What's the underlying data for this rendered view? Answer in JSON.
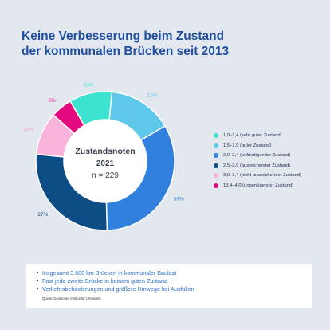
{
  "title": {
    "line1": "Keine Verbesserung beim Zustand",
    "line2": "der kommunalen Brücken seit 2013"
  },
  "center_label": {
    "line1": "Zustandsnoten",
    "line2": "2021",
    "line3": "n = 229"
  },
  "chart_data": {
    "type": "pie",
    "title": "Keine Verbesserung beim Zustand der kommunalen Brücken seit 2013",
    "donut": true,
    "legend_position": "right",
    "categories": [
      "1,0–1,4 (sehr guter Zustand)",
      "1,5–1,9 (guter Zustand)",
      "2,0–2,4 (befriedigender Zustand)",
      "2,5–2,9 (ausreichender Zustand)",
      "3,0–3,4 (nicht ausreichender Zustand)",
      "13,4–4,0 (ungenügender Zustand)"
    ],
    "values": [
      10,
      15,
      33,
      27,
      10,
      5
    ],
    "value_labels": [
      "10%",
      "15%",
      "33%",
      "27%",
      "10%",
      "5%"
    ],
    "colors": [
      "#3de3d0",
      "#5fc8ea",
      "#3180de",
      "#0d4d86",
      "#f8b4da",
      "#e5097f"
    ],
    "label_colors": [
      "#3de3d0",
      "#5fc8ea",
      "#3180de",
      "#0d4d86",
      "#f4a3cf",
      "#e5097f"
    ]
  },
  "info": {
    "bullets": [
      "Insgesamt 3.600 km Brücken in kommunaler Baulast",
      "Fast jede zweite Brücke in keinem guten Zustand",
      "Verkehrsbehinderungen und größere Umwege bei Ausfällen"
    ],
    "bullet_symbol": "•",
    "source": "Quelle: Deutsches Institut für Urbanistik"
  }
}
